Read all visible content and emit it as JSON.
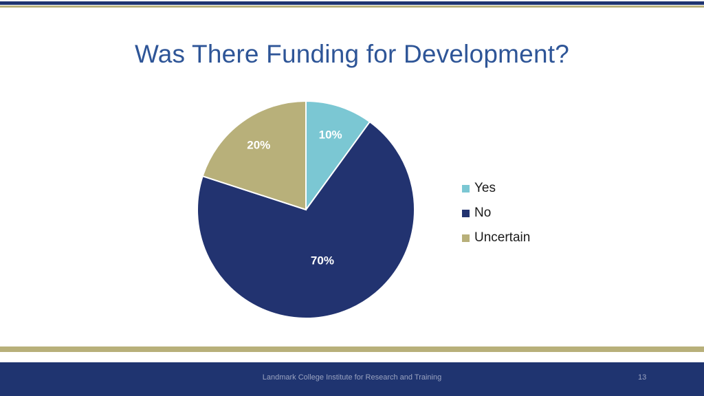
{
  "slide": {
    "title": "Was There Funding for Development?",
    "footer": "Landmark College Institute for Research and Training",
    "page_number": "13"
  },
  "colors": {
    "title": "#2e5597",
    "navy": "#1f3470",
    "gold": "#b8b07a",
    "slice_yes": "#7bc7d3",
    "slice_no": "#223370",
    "slice_uncertain": "#b8b07a"
  },
  "chart_data": {
    "type": "pie",
    "title": "Was There Funding for Development?",
    "categories": [
      "Yes",
      "No",
      "Uncertain"
    ],
    "values": [
      10,
      70,
      20
    ],
    "labels": [
      "10%",
      "70%",
      "20%"
    ],
    "colors": [
      "#7bc7d3",
      "#223370",
      "#b8b07a"
    ],
    "legend_position": "right"
  }
}
